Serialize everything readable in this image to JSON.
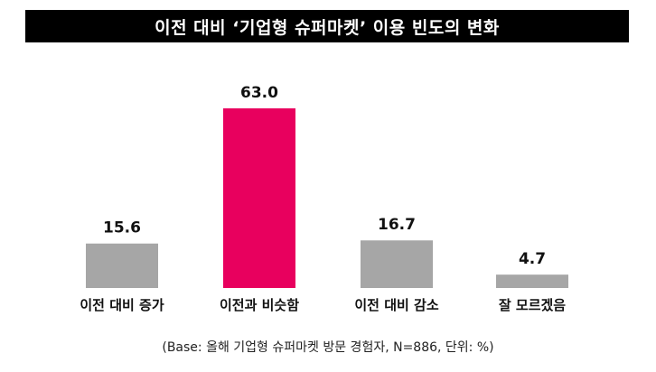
{
  "title": "이전 대비 ‘기업형 슈퍼마켓’ 이용 빈도의 변화",
  "base_note": "(Base: 올해 기업형 슈퍼마켓 방문 경험자, N=886, 단위: %)",
  "colors": {
    "title_bg": "#000000",
    "title_text": "#ffffff",
    "bar_default": "#a6a6a6",
    "bar_highlight": "#e8005e"
  },
  "chart_data": {
    "type": "bar",
    "title": "이전 대비 ‘기업형 슈퍼마켓’ 이용 빈도의 변화",
    "categories": [
      "이전 대비 증가",
      "이전과 비슷함",
      "이전 대비 감소",
      "잘 모르겠음"
    ],
    "values": [
      15.6,
      63.0,
      16.7,
      4.7
    ],
    "value_labels": [
      "15.6",
      "63.0",
      "16.7",
      "4.7"
    ],
    "highlight_index": 1,
    "ylim": [
      0,
      63
    ],
    "grid": false,
    "legend": "none"
  }
}
